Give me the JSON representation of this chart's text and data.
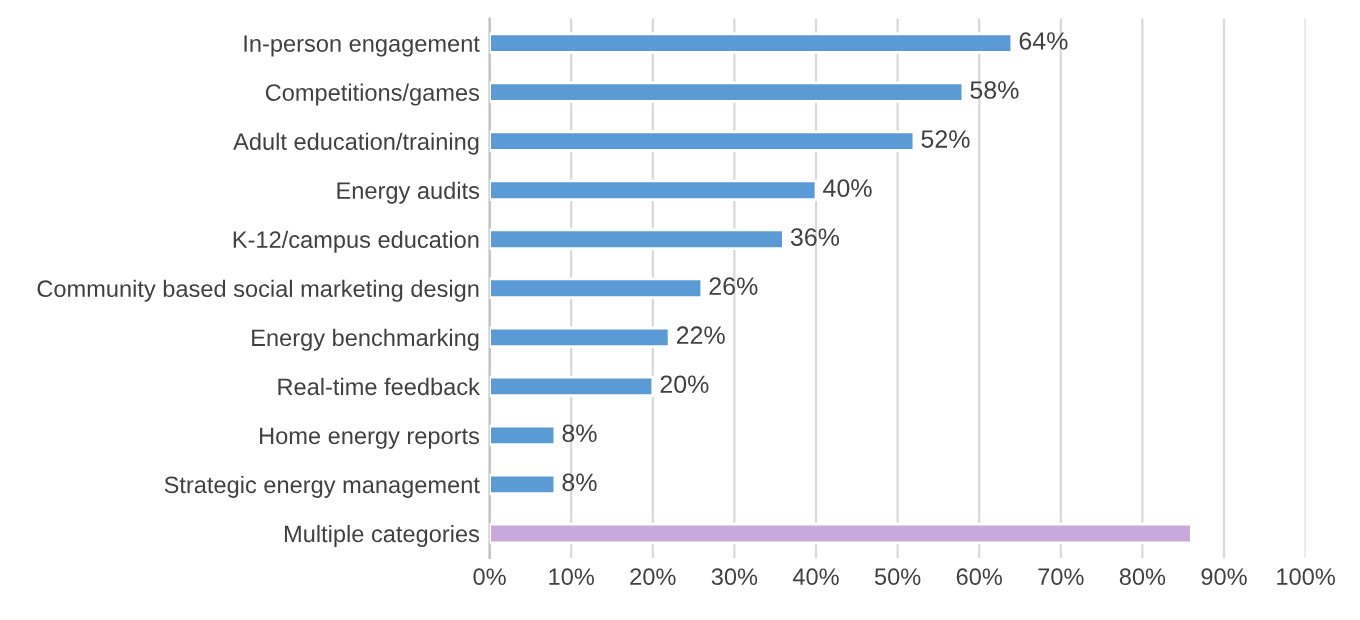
{
  "chart_data": {
    "type": "bar",
    "orientation": "horizontal",
    "categories": [
      "In-person engagement",
      "Competitions/games",
      "Adult education/training",
      "Energy audits",
      "K-12/campus education",
      "Community based social marketing design",
      "Energy benchmarking",
      "Real-time feedback",
      "Home energy reports",
      "Strategic energy management",
      "Multiple categories"
    ],
    "values": [
      64,
      58,
      52,
      40,
      36,
      26,
      22,
      20,
      8,
      8,
      86
    ],
    "colors": [
      "#5b9bd5",
      "#5b9bd5",
      "#5b9bd5",
      "#5b9bd5",
      "#5b9bd5",
      "#5b9bd5",
      "#5b9bd5",
      "#5b9bd5",
      "#5b9bd5",
      "#5b9bd5",
      "#c9a9dc"
    ],
    "value_labels": [
      "64%",
      "58%",
      "52%",
      "40%",
      "36%",
      "26%",
      "22%",
      "20%",
      "8%",
      "8%",
      null
    ],
    "xlim": [
      0,
      100
    ],
    "xticks": [
      {
        "value": 0,
        "label": "0%"
      },
      {
        "value": 10,
        "label": "10%"
      },
      {
        "value": 20,
        "label": "20%"
      },
      {
        "value": 30,
        "label": "30%"
      },
      {
        "value": 40,
        "label": "40%"
      },
      {
        "value": 50,
        "label": "50%"
      },
      {
        "value": 60,
        "label": "60%"
      },
      {
        "value": 70,
        "label": "70%"
      },
      {
        "value": 80,
        "label": "80%"
      },
      {
        "value": 90,
        "label": "90%"
      },
      {
        "value": 100,
        "label": "100%"
      }
    ],
    "grid": "x",
    "legend": false
  }
}
